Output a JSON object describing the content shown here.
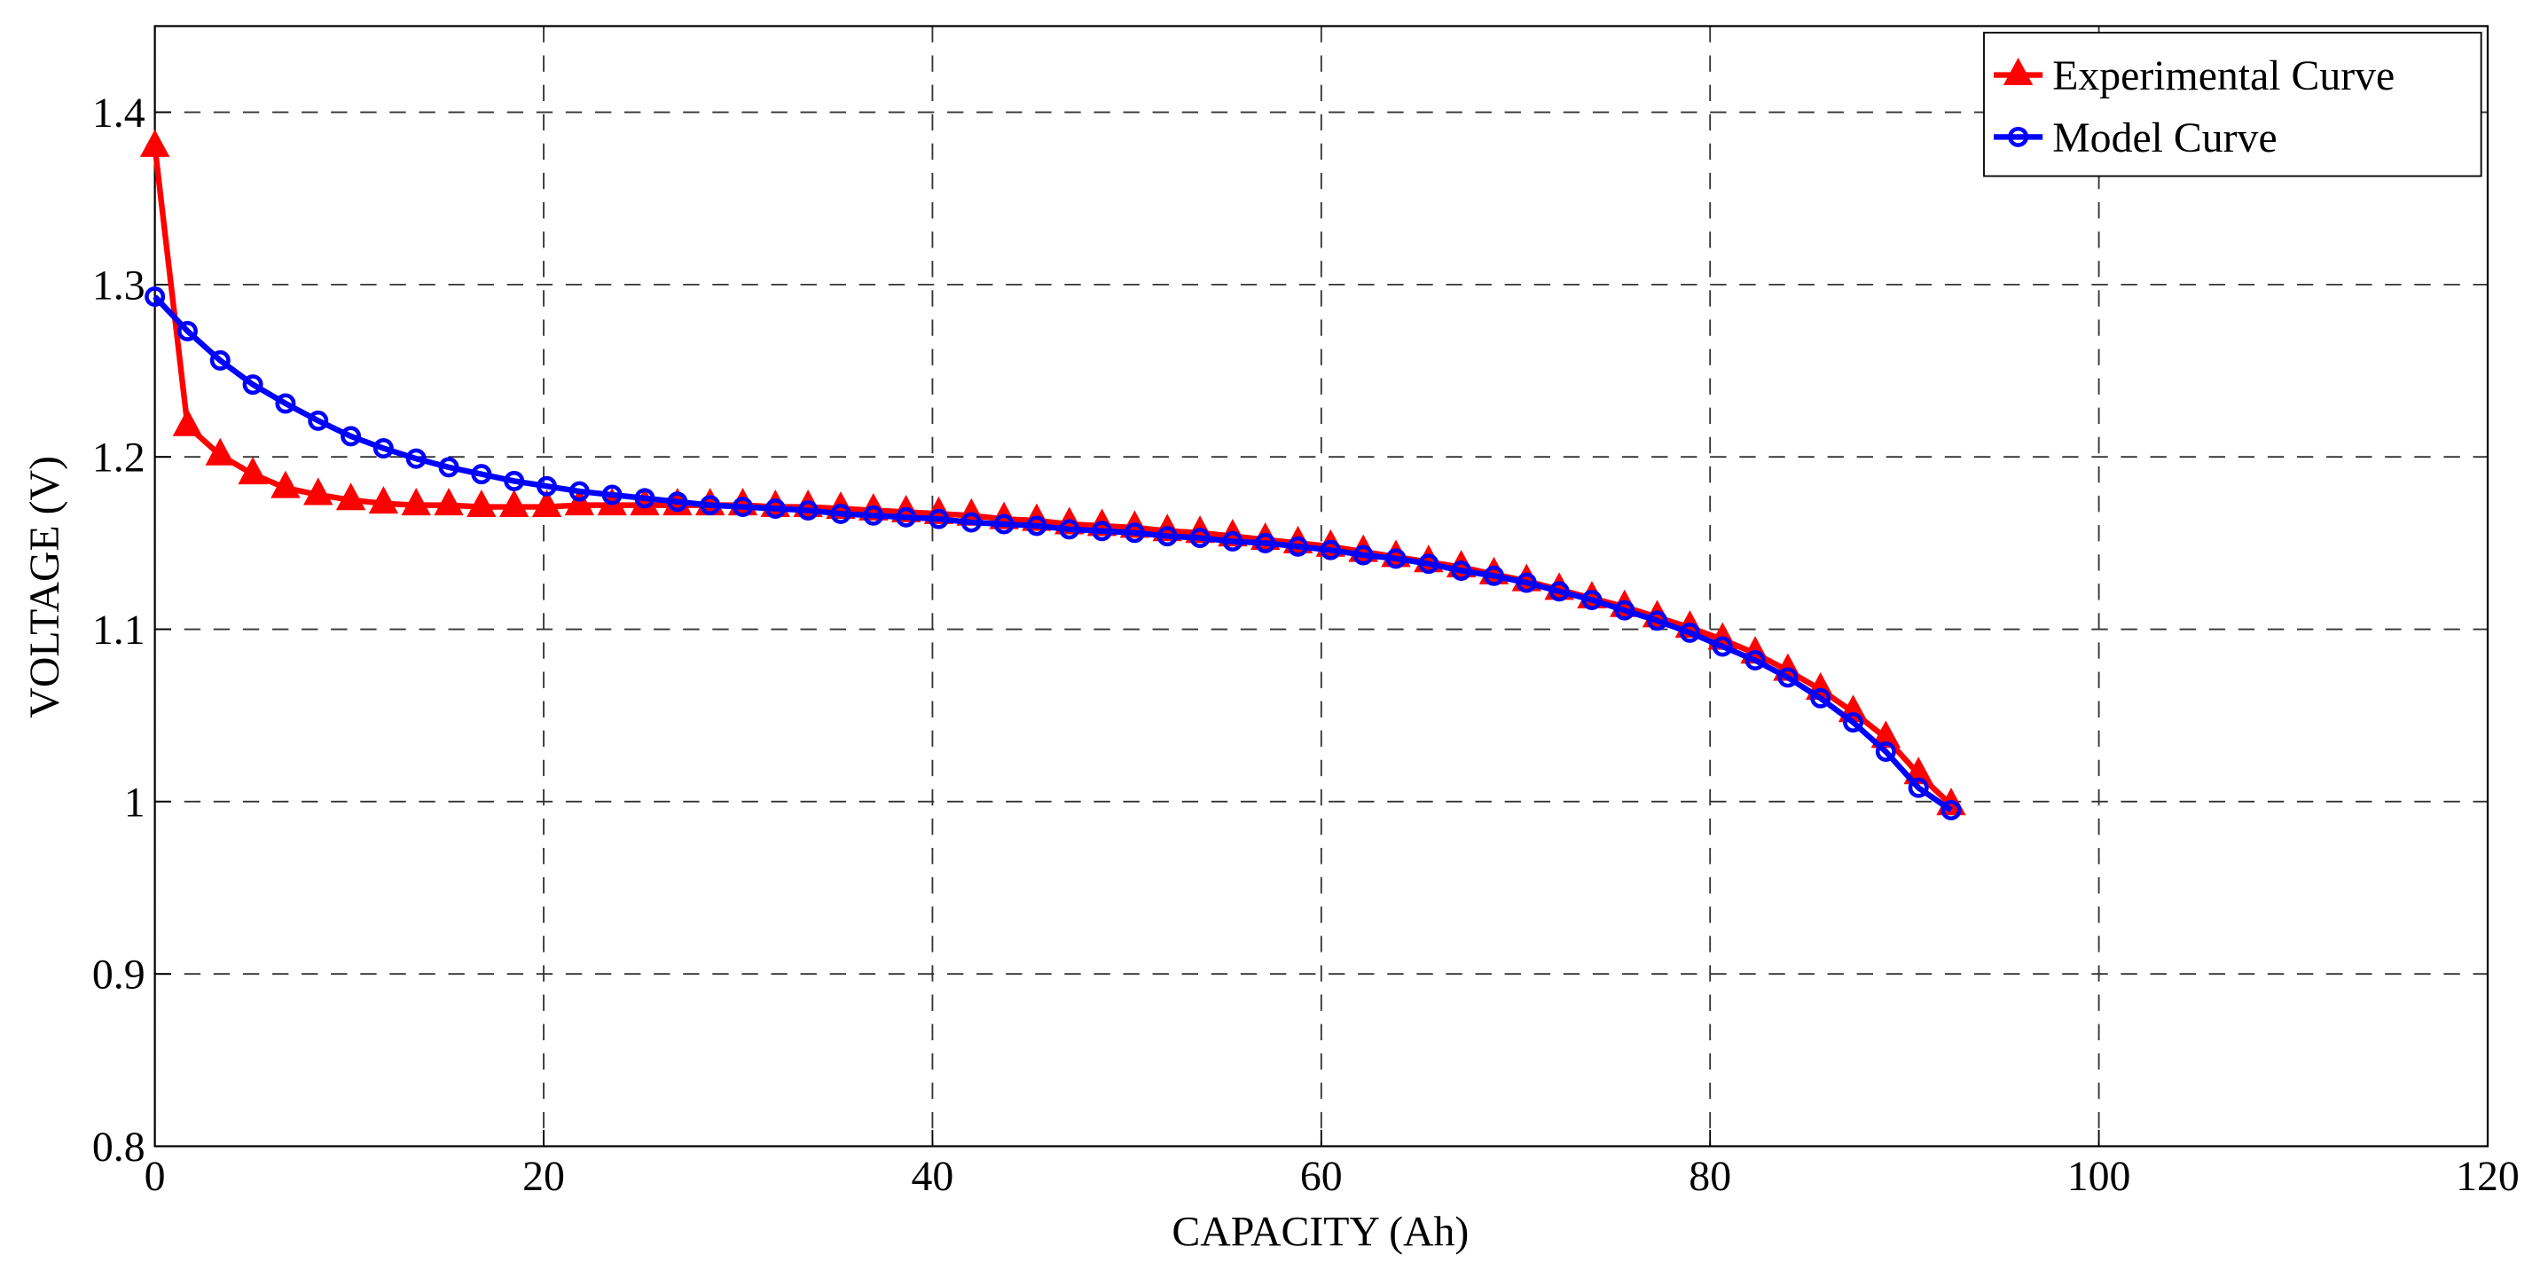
{
  "chart_data": {
    "type": "line",
    "xlabel": "CAPACITY (Ah)",
    "ylabel": "VOLTAGE (V)",
    "x": [
      0,
      1.68,
      3.36,
      5.04,
      6.72,
      8.4,
      10.08,
      11.76,
      13.44,
      15.12,
      16.8,
      18.48,
      20.16,
      21.84,
      23.52,
      25.2,
      26.88,
      28.56,
      30.24,
      31.92,
      33.6,
      35.28,
      36.96,
      38.64,
      40.32,
      42,
      43.68,
      45.36,
      47.04,
      48.72,
      50.4,
      52.08,
      53.76,
      55.44,
      57.12,
      58.8,
      60.48,
      62.16,
      63.84,
      65.52,
      67.2,
      68.88,
      70.56,
      72.24,
      73.92,
      75.6,
      77.28,
      78.96,
      80.64,
      82.32,
      84,
      85.68,
      87.36,
      89.04,
      90.72,
      92.4
    ],
    "series": [
      {
        "name": "Experimental Curve",
        "color": "#ff0000",
        "marker": "triangle",
        "values": [
          1.38,
          1.218,
          1.201,
          1.19,
          1.182,
          1.178,
          1.175,
          1.173,
          1.172,
          1.172,
          1.171,
          1.171,
          1.171,
          1.172,
          1.172,
          1.172,
          1.172,
          1.172,
          1.172,
          1.171,
          1.171,
          1.17,
          1.169,
          1.168,
          1.167,
          1.166,
          1.164,
          1.163,
          1.161,
          1.16,
          1.159,
          1.157,
          1.156,
          1.154,
          1.152,
          1.15,
          1.148,
          1.145,
          1.142,
          1.139,
          1.136,
          1.132,
          1.128,
          1.123,
          1.118,
          1.113,
          1.107,
          1.101,
          1.094,
          1.086,
          1.076,
          1.065,
          1.052,
          1.037,
          1.016,
          0.998
        ]
      },
      {
        "name": "Model Curve",
        "color": "#0000ff",
        "marker": "circle",
        "values": [
          1.293,
          1.273,
          1.256,
          1.242,
          1.231,
          1.221,
          1.212,
          1.205,
          1.199,
          1.194,
          1.19,
          1.186,
          1.183,
          1.18,
          1.178,
          1.176,
          1.174,
          1.172,
          1.171,
          1.17,
          1.169,
          1.167,
          1.166,
          1.165,
          1.164,
          1.162,
          1.161,
          1.16,
          1.158,
          1.157,
          1.156,
          1.154,
          1.153,
          1.151,
          1.15,
          1.148,
          1.146,
          1.143,
          1.141,
          1.138,
          1.134,
          1.131,
          1.127,
          1.122,
          1.117,
          1.111,
          1.105,
          1.098,
          1.09,
          1.082,
          1.072,
          1.06,
          1.046,
          1.029,
          1.008,
          0.995
        ]
      }
    ],
    "xlim": [
      0,
      120
    ],
    "xticks": [
      0,
      20,
      40,
      60,
      80,
      100,
      120
    ],
    "ylim": [
      0.8,
      1.45
    ],
    "yticks": [
      0.8,
      0.9,
      1,
      1.1,
      1.2,
      1.3,
      1.4
    ],
    "grid": true,
    "legend": "upper right"
  }
}
